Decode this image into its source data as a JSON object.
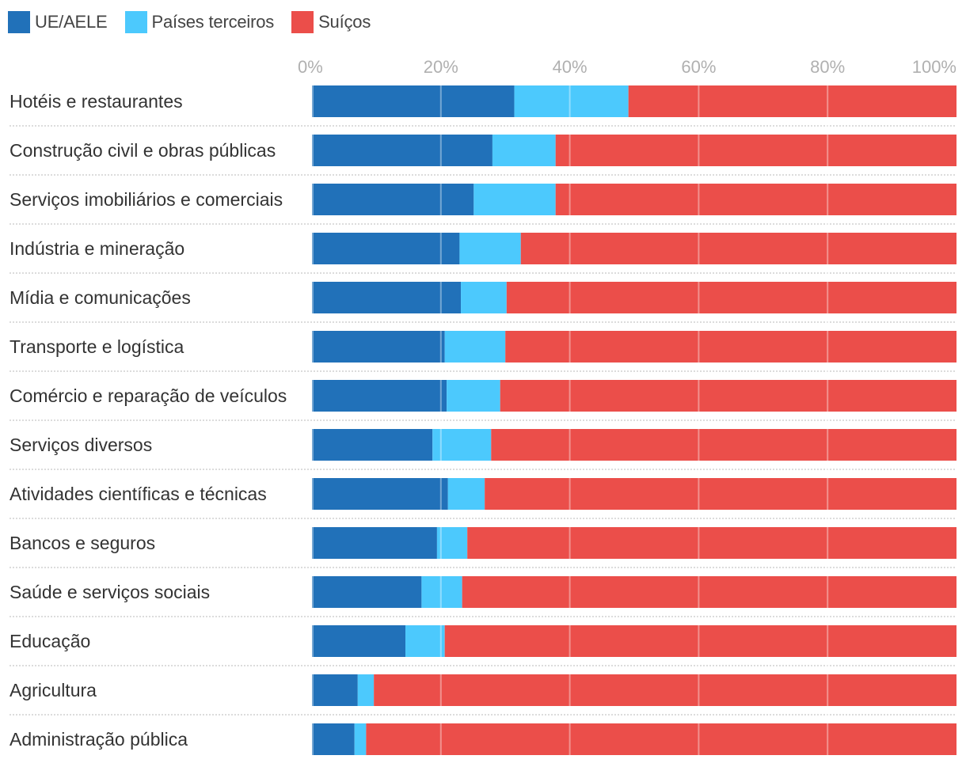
{
  "legend": [
    {
      "label": "UE/AELE",
      "color": "#2171b9"
    },
    {
      "label": "Países terceiros",
      "color": "#4cc9fd"
    },
    {
      "label": "Suíços",
      "color": "#eb4e4a"
    }
  ],
  "chart_data": {
    "type": "bar",
    "orientation": "horizontal",
    "stacked": true,
    "title": "",
    "xlabel": "",
    "ylabel": "",
    "xlim": [
      0,
      100
    ],
    "x_ticks": [
      "0%",
      "20%",
      "40%",
      "60%",
      "80%",
      "100%"
    ],
    "x_tick_values": [
      0,
      20,
      40,
      60,
      80,
      100
    ],
    "grid": true,
    "legend_position": "top-left",
    "categories": [
      "Hotéis e restaurantes",
      "Construção civil e obras públicas",
      "Serviços imobiliários e comerciais",
      "Indústria e mineração",
      "Mídia e comunicações",
      "Transporte e logística",
      "Comércio e reparação de veículos",
      "Serviços diversos",
      "Atividades científicas e técnicas",
      "Bancos e seguros",
      "Saúde e serviços sociais",
      "Educação",
      "Agricultura",
      "Administração pública"
    ],
    "series": [
      {
        "name": "UE/AELE",
        "color": "#2171b9",
        "values": [
          31.4,
          28.0,
          25.1,
          22.9,
          23.1,
          20.6,
          20.9,
          18.7,
          21.1,
          19.4,
          17.0,
          14.5,
          7.1,
          6.6
        ]
      },
      {
        "name": "Países terceiros",
        "color": "#4cc9fd",
        "values": [
          17.7,
          9.8,
          12.7,
          9.5,
          7.1,
          9.4,
          8.3,
          9.1,
          5.7,
          4.7,
          6.3,
          6.1,
          2.5,
          1.8
        ]
      },
      {
        "name": "Suíços",
        "color": "#eb4e4a",
        "values": [
          50.9,
          62.2,
          62.2,
          67.6,
          69.8,
          70.0,
          70.8,
          72.2,
          73.2,
          75.9,
          76.7,
          79.4,
          90.4,
          91.6
        ]
      }
    ]
  }
}
